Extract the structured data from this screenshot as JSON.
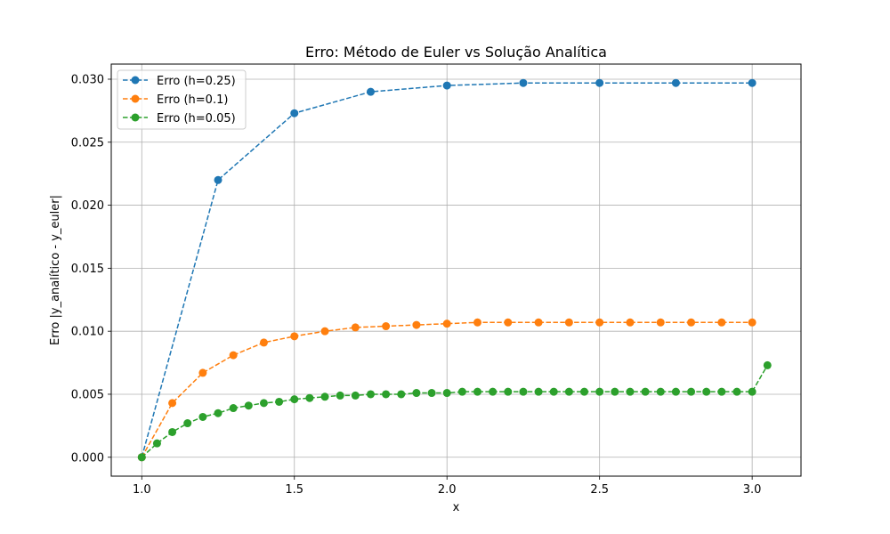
{
  "chart_data": {
    "type": "line",
    "title": "Erro: Método de Euler vs Solução Analítica",
    "xlabel": "x",
    "ylabel": "Erro |y_analítico - y_euler|",
    "xlim": [
      0.9,
      3.16
    ],
    "ylim": [
      -0.0015,
      0.0312
    ],
    "xticks": [
      1.0,
      1.5,
      2.0,
      2.5,
      3.0
    ],
    "xtick_labels": [
      "1.0",
      "1.5",
      "2.0",
      "2.5",
      "3.0"
    ],
    "yticks": [
      0.0,
      0.005,
      0.01,
      0.015,
      0.02,
      0.025,
      0.03
    ],
    "ytick_labels": [
      "0.000",
      "0.005",
      "0.010",
      "0.015",
      "0.020",
      "0.025",
      "0.030"
    ],
    "grid": true,
    "legend_position": "top-left",
    "series": [
      {
        "name": "Erro (h=0.25)",
        "color": "#1f77b4",
        "x": [
          1.0,
          1.25,
          1.5,
          1.75,
          2.0,
          2.25,
          2.5,
          2.75,
          3.0
        ],
        "values": [
          0.0,
          0.022,
          0.0273,
          0.029,
          0.0295,
          0.0297,
          0.0297,
          0.0297,
          0.0297
        ]
      },
      {
        "name": "Erro (h=0.1)",
        "color": "#ff7f0e",
        "x": [
          1.0,
          1.1,
          1.2,
          1.3,
          1.4,
          1.5,
          1.6,
          1.7,
          1.8,
          1.9,
          2.0,
          2.1,
          2.2,
          2.3,
          2.4,
          2.5,
          2.6,
          2.7,
          2.8,
          2.9,
          3.0
        ],
        "values": [
          0.0,
          0.0043,
          0.0067,
          0.0081,
          0.0091,
          0.0096,
          0.01,
          0.0103,
          0.0104,
          0.0105,
          0.0106,
          0.0107,
          0.0107,
          0.0107,
          0.0107,
          0.0107,
          0.0107,
          0.0107,
          0.0107,
          0.0107,
          0.0107
        ]
      },
      {
        "name": "Erro (h=0.05)",
        "color": "#2ca02c",
        "x": [
          1.0,
          1.05,
          1.1,
          1.15,
          1.2,
          1.25,
          1.3,
          1.35,
          1.4,
          1.45,
          1.5,
          1.55,
          1.6,
          1.65,
          1.7,
          1.75,
          1.8,
          1.85,
          1.9,
          1.95,
          2.0,
          2.05,
          2.1,
          2.15,
          2.2,
          2.25,
          2.3,
          2.35,
          2.4,
          2.45,
          2.5,
          2.55,
          2.6,
          2.65,
          2.7,
          2.75,
          2.8,
          2.85,
          2.9,
          2.95,
          3.0,
          3.05
        ],
        "values": [
          0.0,
          0.0011,
          0.002,
          0.0027,
          0.0032,
          0.0035,
          0.0039,
          0.0041,
          0.0043,
          0.0044,
          0.0046,
          0.0047,
          0.0048,
          0.0049,
          0.0049,
          0.005,
          0.005,
          0.005,
          0.0051,
          0.0051,
          0.0051,
          0.0052,
          0.0052,
          0.0052,
          0.0052,
          0.0052,
          0.0052,
          0.0052,
          0.0052,
          0.0052,
          0.0052,
          0.0052,
          0.0052,
          0.0052,
          0.0052,
          0.0052,
          0.0052,
          0.0052,
          0.0052,
          0.0052,
          0.0052,
          0.0073
        ]
      }
    ]
  }
}
